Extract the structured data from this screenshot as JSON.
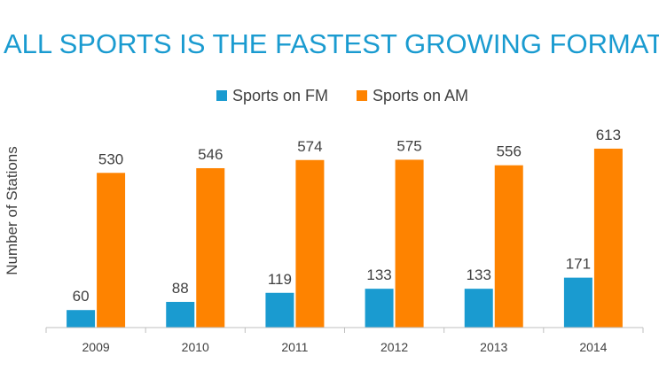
{
  "page": {
    "title": "ALL SPORTS IS THE FASTEST GROWING FORMAT"
  },
  "colors": {
    "title": "#1a9bd0",
    "fm": "#1a9bd0",
    "am": "#fe8300",
    "axis": "#bfbfbf",
    "text": "#404040"
  },
  "chart_data": {
    "type": "bar",
    "title": "ALL SPORTS IS THE FASTEST GROWING FORMAT",
    "xlabel": "",
    "ylabel": "Number of Stations",
    "categories": [
      "2009",
      "2010",
      "2011",
      "2012",
      "2013",
      "2014"
    ],
    "series": [
      {
        "name": "Sports on FM",
        "values": [
          60,
          88,
          119,
          133,
          133,
          171
        ]
      },
      {
        "name": "Sports on AM",
        "values": [
          530,
          546,
          574,
          575,
          556,
          613
        ]
      }
    ],
    "ylim": [
      0,
      700
    ],
    "grid": false,
    "legend": "top-center",
    "data_labels": true
  }
}
